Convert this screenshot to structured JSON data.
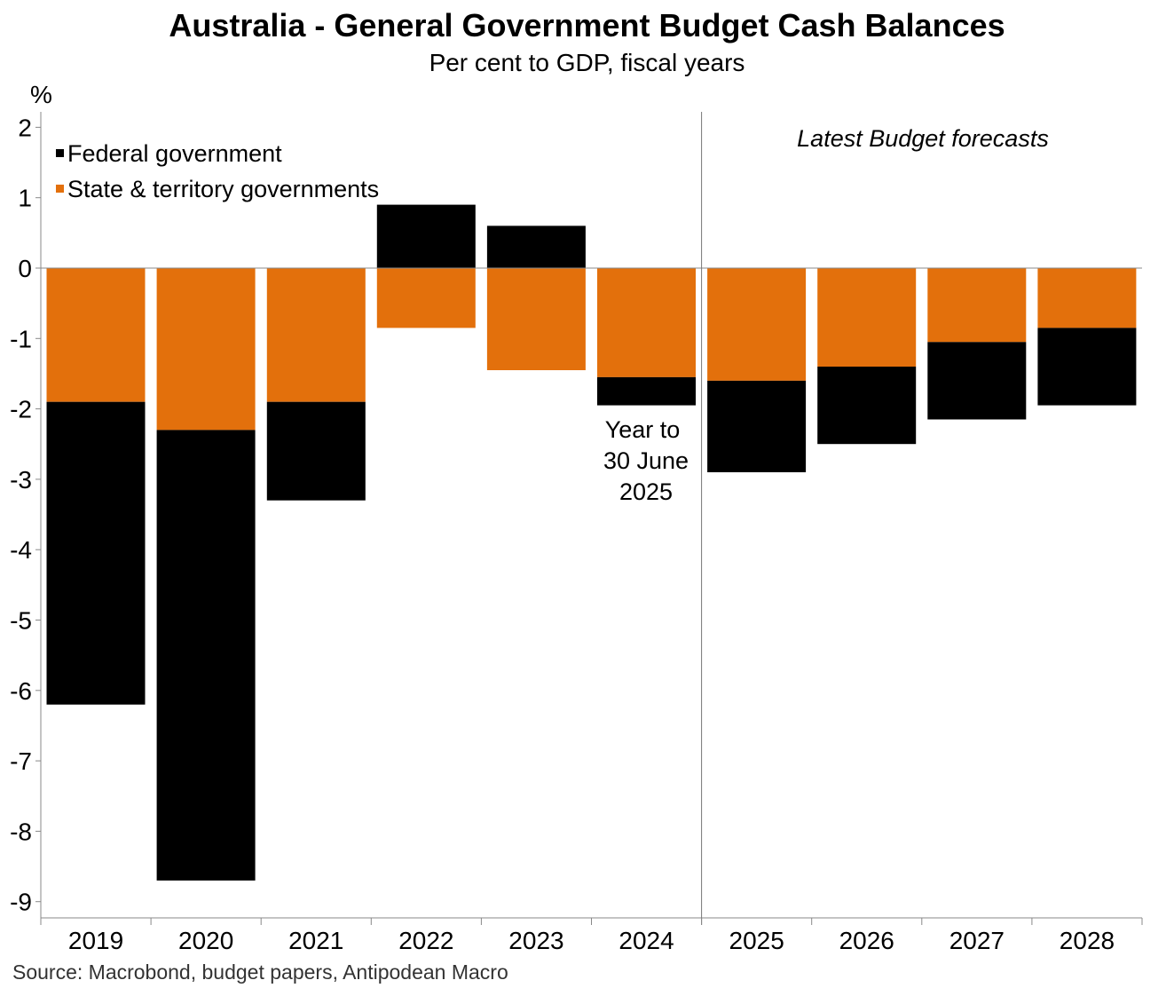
{
  "title": "Australia - General Government Budget Cash Balances",
  "subtitle": "Per cent to GDP, fiscal years",
  "source": "Source: Macrobond, budget papers, Antipodean Macro",
  "chart_data": {
    "type": "bar",
    "stacked": true,
    "categories": [
      "2019",
      "2020",
      "2021",
      "2022",
      "2023",
      "2024",
      "2025",
      "2026",
      "2027",
      "2028"
    ],
    "series": [
      {
        "name": "Federal government",
        "color": "#000000",
        "values": [
          -4.3,
          -6.4,
          -1.4,
          0.9,
          0.6,
          -0.4,
          -1.3,
          -1.1,
          -1.1,
          -1.1
        ]
      },
      {
        "name": "State & territory governments",
        "color": "#E3700C",
        "values": [
          -1.9,
          -2.3,
          -1.9,
          -0.85,
          -1.45,
          -1.55,
          -1.6,
          -1.4,
          -1.05,
          -0.85
        ]
      }
    ],
    "ylabel": "%",
    "ylim": [
      -9.25,
      2.2
    ],
    "yticks": [
      2,
      1,
      0,
      -1,
      -2,
      -3,
      -4,
      -5,
      -6,
      -7,
      -8,
      -9
    ],
    "annotations": {
      "forecast_label": "Latest Budget forecasts",
      "year_note": [
        "Year to",
        "30 June",
        "2025"
      ]
    },
    "legend_position": "top-left"
  }
}
